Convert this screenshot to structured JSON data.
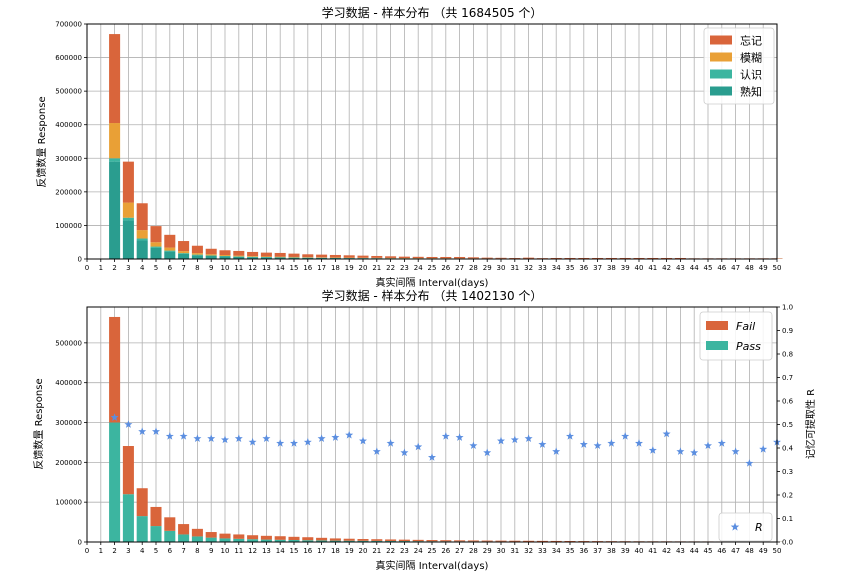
{
  "chart_data": [
    {
      "type": "bar",
      "stacked": true,
      "title": "学习数据 - 样本分布 （共 1684505 个）",
      "xlabel": "真实间隔 Interval(days)",
      "ylabel": "反馈数量 Response",
      "xlim": [
        0,
        50
      ],
      "ylim": [
        0,
        700000
      ],
      "yticks": [
        0,
        100000,
        200000,
        300000,
        400000,
        500000,
        600000,
        700000
      ],
      "grid": true,
      "legend_position": "top-right",
      "x": [
        2,
        3,
        4,
        5,
        6,
        7,
        8,
        9,
        10,
        11,
        12,
        13,
        14,
        15,
        16,
        17,
        18,
        19,
        20,
        21,
        22,
        23,
        24,
        25,
        26,
        27,
        28,
        29,
        30,
        31,
        32,
        33,
        34,
        35,
        36,
        37,
        38,
        39,
        40,
        41,
        42,
        43,
        44,
        45,
        46,
        47,
        48,
        49,
        50
      ],
      "series": [
        {
          "name": "熟知",
          "color": "#2a9d8f",
          "values": [
            290000,
            115000,
            55000,
            33000,
            22000,
            15000,
            11000,
            9000,
            7500,
            6500,
            5500,
            5000,
            4500,
            4000,
            3500,
            3200,
            2900,
            2600,
            2400,
            2200,
            2000,
            1800,
            1700,
            1600,
            1500,
            1400,
            1300,
            1200,
            1100,
            1000,
            1000,
            900,
            900,
            850,
            800,
            750,
            700,
            700,
            650,
            600,
            600,
            550,
            550,
            500,
            500,
            450,
            450,
            400,
            400
          ]
        },
        {
          "name": "认识",
          "color": "#3cb5a0",
          "values": [
            10000,
            8000,
            6000,
            4000,
            3000,
            2500,
            2000,
            1500,
            1300,
            1100,
            1000,
            900,
            800,
            700,
            650,
            600,
            550,
            500,
            450,
            400,
            380,
            350,
            330,
            310,
            300,
            280,
            260,
            250,
            240,
            230,
            220,
            210,
            200,
            190,
            180,
            170,
            160,
            150,
            150,
            140,
            140,
            130,
            130,
            120,
            120,
            110,
            110,
            100,
            100
          ]
        },
        {
          "name": "模糊",
          "color": "#e9a036",
          "values": [
            105000,
            45000,
            25000,
            13000,
            9000,
            6000,
            4500,
            3500,
            3000,
            2500,
            2100,
            1800,
            1600,
            1400,
            1300,
            1200,
            1100,
            1000,
            900,
            850,
            800,
            750,
            700,
            650,
            600,
            550,
            500,
            480,
            460,
            440,
            420,
            400,
            380,
            360,
            340,
            320,
            300,
            280,
            270,
            260,
            250,
            240,
            230,
            220,
            210,
            200,
            190,
            180,
            170
          ]
        },
        {
          "name": "忘记",
          "color": "#d9653b",
          "values": [
            265000,
            122000,
            80000,
            48000,
            38000,
            30000,
            22000,
            16500,
            14200,
            13900,
            12400,
            11300,
            11100,
            9900,
            8550,
            8000,
            7450,
            6900,
            6250,
            5550,
            4820,
            4100,
            3770,
            3440,
            3600,
            3770,
            2940,
            2070,
            1700,
            1330,
            2360,
            990,
            1520,
            1600,
            1680,
            1760,
            1840,
            1870,
            1930,
            2000,
            2010,
            2080,
            1090,
            1160,
            1170,
            1240,
            1250,
            1320,
            1330
          ]
        }
      ]
    },
    {
      "type": "bar",
      "stacked": true,
      "title": "学习数据 - 样本分布 （共 1402130 个）",
      "xlabel": "真实间隔 Interval(days)",
      "ylabel": "反馈数量 Response",
      "y2label": "记忆可提取性 R",
      "xlim": [
        0,
        50
      ],
      "ylim": [
        0,
        590000
      ],
      "yticks": [
        0,
        100000,
        200000,
        300000,
        400000,
        500000
      ],
      "y2lim": [
        0,
        1.0
      ],
      "y2ticks": [
        0.0,
        0.1,
        0.2,
        0.3,
        0.4,
        0.5,
        0.6,
        0.7,
        0.8,
        0.9,
        1.0
      ],
      "grid": true,
      "legend_position": "top-right",
      "legend2_position": "bottom-right",
      "x": [
        2,
        3,
        4,
        5,
        6,
        7,
        8,
        9,
        10,
        11,
        12,
        13,
        14,
        15,
        16,
        17,
        18,
        19,
        20,
        21,
        22,
        23,
        24,
        25,
        26,
        27,
        28,
        29,
        30,
        31,
        32,
        33,
        34,
        35,
        36,
        37,
        38,
        39,
        40,
        41,
        42,
        43,
        44,
        45,
        46,
        47,
        48,
        49,
        50
      ],
      "series": [
        {
          "name": "Pass",
          "color": "#3cb5a0",
          "values": [
            300000,
            120000,
            65000,
            40000,
            28000,
            19000,
            14000,
            11000,
            9000,
            8000,
            7000,
            6000,
            5500,
            5000,
            4500,
            4000,
            3500,
            3200,
            3000,
            2800,
            2600,
            2400,
            2200,
            2000,
            1900,
            1800,
            1700,
            1600,
            1500,
            1400,
            1300,
            1200,
            1150,
            1100,
            1050,
            1000,
            950,
            900,
            850,
            800,
            780,
            760,
            740,
            720,
            700,
            680,
            660,
            640,
            620
          ]
        },
        {
          "name": "Fail",
          "color": "#d9653b",
          "values": [
            265000,
            121000,
            70000,
            48000,
            34000,
            26000,
            19000,
            14000,
            12000,
            11000,
            10000,
            9500,
            9000,
            8000,
            7500,
            6500,
            5500,
            5000,
            4500,
            4200,
            3800,
            3500,
            3200,
            2900,
            2600,
            2400,
            2200,
            2000,
            1900,
            1800,
            1700,
            1600,
            1500,
            1400,
            1300,
            1200,
            1100,
            1000,
            950,
            900,
            850,
            800,
            750,
            700,
            650,
            600,
            550,
            500,
            450
          ]
        },
        {
          "name": "R",
          "marker": "star",
          "color": "#5b8ee0",
          "axis": "right",
          "values": [
            0.53,
            0.5,
            0.47,
            0.47,
            0.45,
            0.45,
            0.44,
            0.44,
            0.435,
            0.44,
            0.425,
            0.44,
            0.42,
            0.42,
            0.425,
            0.44,
            0.445,
            0.455,
            0.43,
            0.385,
            0.42,
            0.38,
            0.405,
            0.36,
            0.45,
            0.445,
            0.41,
            0.38,
            0.43,
            0.435,
            0.44,
            0.415,
            0.385,
            0.45,
            0.415,
            0.41,
            0.42,
            0.45,
            0.42,
            0.39,
            0.46,
            0.385,
            0.38,
            0.41,
            0.42,
            0.385,
            0.335,
            0.395,
            0.425
          ]
        }
      ]
    }
  ]
}
